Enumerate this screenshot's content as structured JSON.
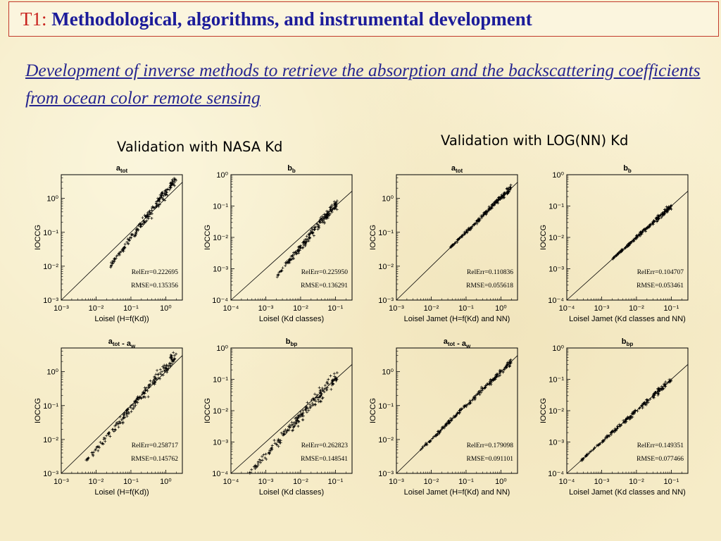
{
  "slide": {
    "tag": "T1:",
    "title": "Methodological, algorithms, and instrumental development",
    "subtitle": "Development of  inverse methods to retrieve the absorption and the backscattering coefficients from ocean color remote sensing",
    "left_group_label": "Validation with NASA Kd",
    "right_group_label": "Validation with LOG(NN) Kd"
  },
  "colors": {
    "tag": "#c8231e",
    "title": "#1c1c9a",
    "subtitle": "#262690",
    "border": "#c23a2c",
    "points": "#000000"
  },
  "chart_data": [
    {
      "type": "scatter",
      "title": "a_tot",
      "xlabel": "Loisel (H=f(Kd))",
      "ylabel": "IOCCG",
      "scale": "log",
      "xlim": [
        0.001,
        3
      ],
      "ylim": [
        0.001,
        5
      ],
      "x_ticks": [
        -3,
        -2,
        -1,
        0
      ],
      "y_ticks": [
        -3,
        -2,
        -1,
        0
      ],
      "data_range": [
        -1.6,
        0.3
      ],
      "spread": 0.11,
      "slope": 1.25,
      "intercept": 0.45,
      "annotations": [
        "RelErr=0.222695",
        "RMSE=0.135356"
      ]
    },
    {
      "type": "scatter",
      "title": "b_b",
      "xlabel": "Loisel (Kd classes)",
      "ylabel": "IOCCG",
      "scale": "log",
      "xlim": [
        0.0001,
        0.3
      ],
      "ylim": [
        0.0001,
        1
      ],
      "x_ticks": [
        -4,
        -3,
        -2,
        -1
      ],
      "y_ticks": [
        -4,
        -3,
        -2,
        -1,
        0
      ],
      "data_range": [
        -2.7,
        -0.95
      ],
      "spread": 0.12,
      "slope": 1.2,
      "intercept": 0.45,
      "annotations": [
        "RelErr=0.225950",
        "RMSE=0.136291"
      ]
    },
    {
      "type": "scatter",
      "title": "a_tot",
      "xlabel": "Loisel Jamet (H=f(Kd) and NN)",
      "ylabel": "IOCCG",
      "scale": "log",
      "xlim": [
        0.001,
        3
      ],
      "ylim": [
        0.001,
        5
      ],
      "x_ticks": [
        -3,
        -2,
        -1,
        0
      ],
      "y_ticks": [
        -3,
        -2,
        -1,
        0
      ],
      "data_range": [
        -1.6,
        0.3
      ],
      "spread": 0.05,
      "slope": 1.0,
      "intercept": 0.05,
      "annotations": [
        "RelErr=0.110836",
        "RMSE=0.055618"
      ]
    },
    {
      "type": "scatter",
      "title": "b_b",
      "xlabel": "Loisel Jamet (Kd classes and NN)",
      "ylabel": "IOCCG",
      "scale": "log",
      "xlim": [
        0.0001,
        0.3
      ],
      "ylim": [
        0.0001,
        1
      ],
      "x_ticks": [
        -4,
        -3,
        -2,
        -1
      ],
      "y_ticks": [
        -4,
        -3,
        -2,
        -1,
        0
      ],
      "data_range": [
        -2.7,
        -1.0
      ],
      "spread": 0.05,
      "slope": 1.0,
      "intercept": 0.0,
      "annotations": [
        "RelErr=0.104707",
        "RMSE=0.053461"
      ]
    },
    {
      "type": "scatter",
      "title": "a_tot - a_w",
      "xlabel": "Loisel (H=f(Kd))",
      "ylabel": "IOCCG",
      "scale": "log",
      "xlim": [
        0.001,
        3
      ],
      "ylim": [
        0.001,
        5
      ],
      "x_ticks": [
        -3,
        -2,
        -1,
        0
      ],
      "y_ticks": [
        -3,
        -2,
        -1,
        0
      ],
      "data_range": [
        -2.3,
        0.3
      ],
      "spread": 0.12,
      "slope": 1.15,
      "intercept": 0.3,
      "annotations": [
        "RelErr=0.258717",
        "RMSE=0.145762"
      ]
    },
    {
      "type": "scatter",
      "title": "b_bp",
      "xlabel": "Loisel (Kd classes)",
      "ylabel": "IOCCG",
      "scale": "log",
      "xlim": [
        0.0001,
        0.3
      ],
      "ylim": [
        0.0001,
        1
      ],
      "x_ticks": [
        -4,
        -3,
        -2,
        -1
      ],
      "y_ticks": [
        -4,
        -3,
        -2,
        -1,
        0
      ],
      "data_range": [
        -3.5,
        -0.95
      ],
      "spread": 0.14,
      "slope": 1.15,
      "intercept": 0.4,
      "annotations": [
        "RelErr=0.262823",
        "RMSE=0.148541"
      ]
    },
    {
      "type": "scatter",
      "title": "a_tot - a_w",
      "xlabel": "Loisel Jamet (H=f(Kd) and NN)",
      "ylabel": "IOCCG",
      "scale": "log",
      "xlim": [
        0.001,
        3
      ],
      "ylim": [
        0.001,
        5
      ],
      "x_ticks": [
        -3,
        -2,
        -1,
        0
      ],
      "y_ticks": [
        -3,
        -2,
        -1,
        0
      ],
      "data_range": [
        -2.3,
        0.3
      ],
      "spread": 0.06,
      "slope": 1.0,
      "intercept": 0.0,
      "annotations": [
        "RelErr=0.179098",
        "RMSE=0.091101"
      ]
    },
    {
      "type": "scatter",
      "title": "b_bp",
      "xlabel": "Loisel Jamet (Kd classes and NN)",
      "ylabel": "IOCCG",
      "scale": "log",
      "xlim": [
        0.0001,
        0.3
      ],
      "ylim": [
        0.0001,
        1
      ],
      "x_ticks": [
        -4,
        -3,
        -2,
        -1
      ],
      "y_ticks": [
        -4,
        -3,
        -2,
        -1,
        0
      ],
      "data_range": [
        -3.6,
        -1.0
      ],
      "spread": 0.06,
      "slope": 1.0,
      "intercept": 0.0,
      "annotations": [
        "RelErr=0.149351",
        "RMSE=0.077466"
      ]
    }
  ]
}
